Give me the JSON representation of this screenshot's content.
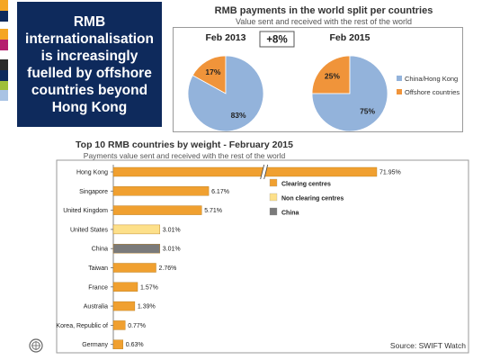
{
  "headline": "RMB internationalisation is increasingly fuelled by offshore countries beyond Hong Kong",
  "pie_section": {
    "title": "RMB payments in the world split per countries",
    "subtitle": "Value sent and received with the rest of the world",
    "growth_label": "+8%"
  },
  "bar_section": {
    "title": "Top 10 RMB countries by weight - February 2015",
    "subtitle": "Payments value sent and received with the rest of the world"
  },
  "source": "Source: SWIFT Watch",
  "colors": {
    "navy": "#0e2a5c",
    "clearing": "#f0a030",
    "non_clearing": "#fde08a",
    "china": "#7a7a7a",
    "pie_blue": "#93b3db",
    "pie_orange": "#f0943a"
  },
  "chart_data": [
    {
      "type": "pie",
      "title": "Feb 2013",
      "slices": [
        {
          "name": "China/Hong Kong",
          "value": 83,
          "label": "83%"
        },
        {
          "name": "Offshore countries",
          "value": 17,
          "label": "17%"
        }
      ],
      "legend_placement": "right"
    },
    {
      "type": "pie",
      "title": "Feb 2015",
      "slices": [
        {
          "name": "China/Hong Kong",
          "value": 75,
          "label": "75%"
        },
        {
          "name": "Offshore countries",
          "value": 25,
          "label": "25%"
        }
      ],
      "legend_placement": "right"
    },
    {
      "type": "bar",
      "orientation": "horizontal",
      "title": "Top 10 RMB countries by weight - February 2015",
      "subtitle": "Payments value sent and received with the rest of the world",
      "axis_break": true,
      "categories": [
        "Hong Kong",
        "Singapore",
        "United Kingdom",
        "United States",
        "China",
        "Taiwan",
        "France",
        "Australia",
        "Korea, Republic of",
        "Germany"
      ],
      "values": [
        71.95,
        6.17,
        5.71,
        3.01,
        3.01,
        2.76,
        1.57,
        1.39,
        0.77,
        0.63
      ],
      "labels": [
        "71.95%",
        "6.17%",
        "5.71%",
        "3.01%",
        "3.01%",
        "2.76%",
        "1.57%",
        "1.39%",
        "0.77%",
        "0.63%"
      ],
      "groups": [
        "clearing",
        "clearing",
        "clearing",
        "non_clearing",
        "china",
        "clearing",
        "clearing",
        "clearing",
        "clearing",
        "clearing"
      ],
      "legend": [
        {
          "key": "clearing",
          "label": "Clearing centres"
        },
        {
          "key": "non_clearing",
          "label": "Non clearing centres"
        },
        {
          "key": "china",
          "label": "China"
        }
      ],
      "legend_placement": "right"
    }
  ]
}
